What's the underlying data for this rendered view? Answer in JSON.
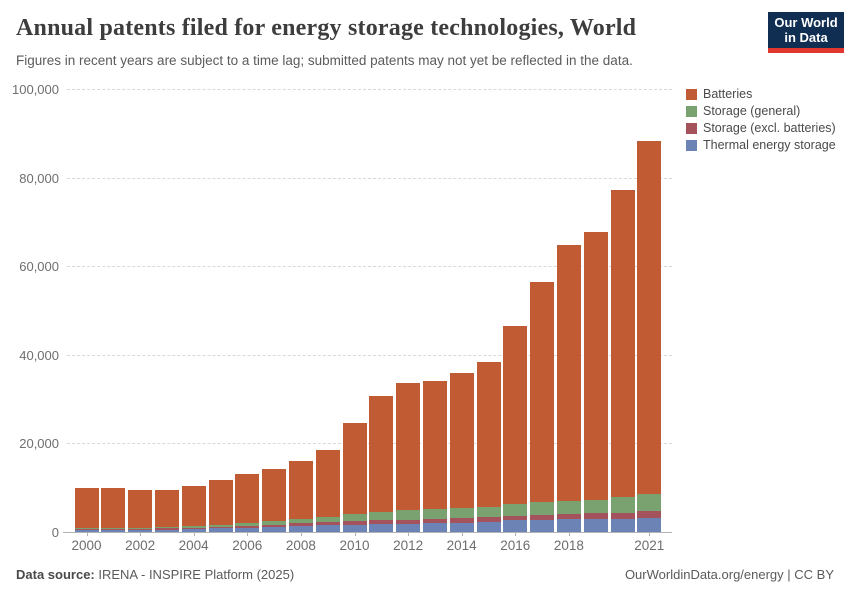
{
  "header": {
    "title": "Annual patents filed for energy storage technologies, World",
    "subtitle": "Figures in recent years are subject to a time lag; submitted patents may not yet be reflected in the data.",
    "logo_line1": "Our World",
    "logo_line2": "in Data",
    "logo_colors": {
      "background": "#0F2E51",
      "accent": "#E0372E",
      "text": "#FFFFFF"
    }
  },
  "chart_data": {
    "type": "bar",
    "stacked": true,
    "title": "Annual patents filed for energy storage technologies, World",
    "xlabel": "",
    "ylabel": "",
    "x": [
      2000,
      2001,
      2002,
      2003,
      2004,
      2005,
      2006,
      2007,
      2008,
      2009,
      2010,
      2011,
      2012,
      2013,
      2014,
      2015,
      2016,
      2017,
      2018,
      2019,
      2020,
      2021
    ],
    "series": [
      {
        "name": "Thermal energy storage",
        "color": "#6B83B5",
        "values": [
          450,
          450,
          500,
          550,
          700,
          850,
          1000,
          1150,
          1350,
          1550,
          1600,
          1700,
          1800,
          1950,
          2100,
          2300,
          2600,
          2800,
          2900,
          2900,
          3000,
          3200
        ]
      },
      {
        "name": "Storage (excl. batteries)",
        "color": "#A4535D",
        "values": [
          200,
          200,
          220,
          250,
          300,
          380,
          450,
          500,
          600,
          650,
          850,
          950,
          1000,
          1000,
          1050,
          1050,
          1100,
          1100,
          1200,
          1300,
          1400,
          1500
        ]
      },
      {
        "name": "Storage (general)",
        "color": "#7AA170",
        "values": [
          200,
          250,
          250,
          300,
          350,
          450,
          550,
          750,
          900,
          1300,
          1700,
          1950,
          2200,
          2300,
          2300,
          2400,
          2600,
          2800,
          2900,
          3100,
          3400,
          3800
        ]
      },
      {
        "name": "Batteries",
        "color": "#C05B34",
        "values": [
          9050,
          9100,
          8550,
          8300,
          8950,
          10100,
          11200,
          11800,
          13150,
          15100,
          20450,
          26100,
          28700,
          28750,
          30550,
          32650,
          40100,
          49800,
          57800,
          60400,
          69300,
          79800
        ]
      }
    ],
    "stack_order": "bottom-to-top",
    "ylim": [
      0,
      100000
    ],
    "yticks": [
      0,
      20000,
      40000,
      60000,
      80000,
      100000
    ],
    "ytick_labels": [
      "0",
      "20,000",
      "40,000",
      "60,000",
      "80,000",
      "100,000"
    ],
    "xtick_labels": [
      "2000",
      "2002",
      "2004",
      "2006",
      "2008",
      "2010",
      "2012",
      "2014",
      "2016",
      "2018",
      "2021"
    ],
    "grid": "horizontal-dashed",
    "legend_position": "right",
    "legend_order_top_to_bottom": [
      "Batteries",
      "Storage (general)",
      "Storage (excl. batteries)",
      "Thermal energy storage"
    ]
  },
  "footer": {
    "source_label": "Data source:",
    "source_text": "IRENA - INSPIRE Platform (2025)",
    "license_text": "OurWorldinData.org/energy | CC BY"
  }
}
